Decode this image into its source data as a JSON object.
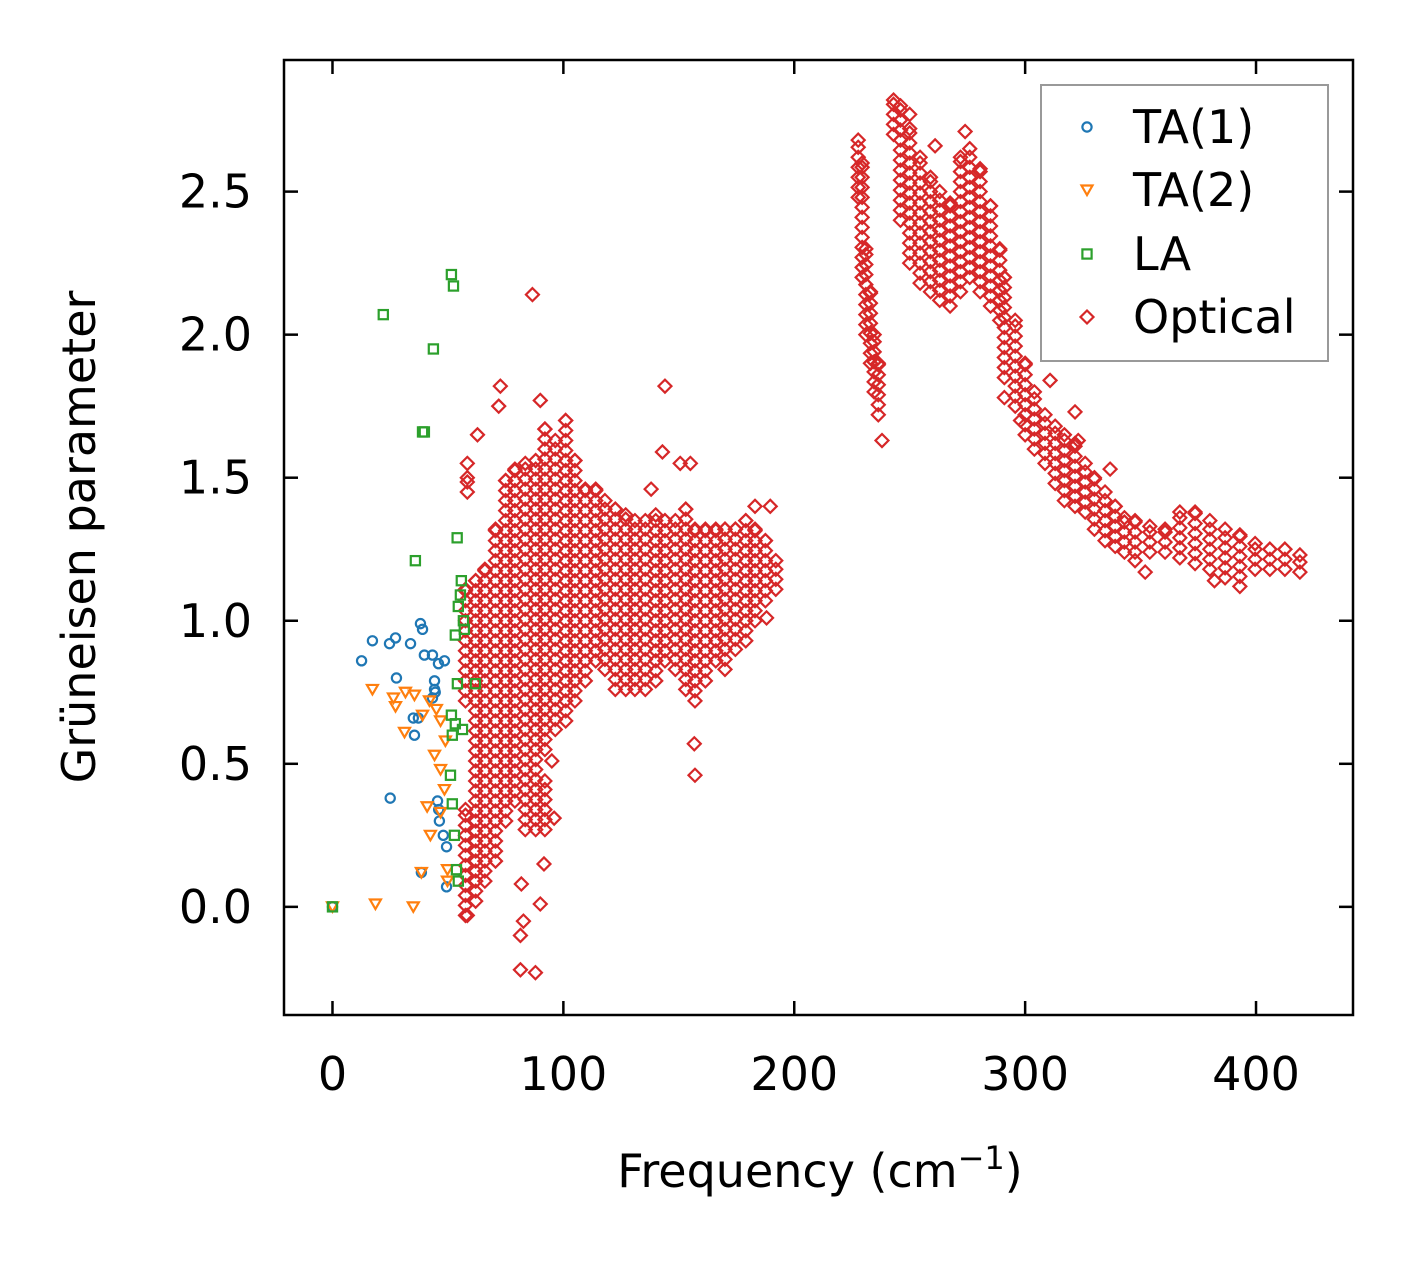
{
  "chart_data": {
    "type": "scatter",
    "title": "",
    "xlabel": {
      "main": "Frequency (cm",
      "sup": "−1",
      "end": ")"
    },
    "ylabel": "Grüneisen parameter",
    "xlim": [
      -21,
      442
    ],
    "ylim": [
      -0.378,
      2.96
    ],
    "xticks": [
      0,
      100,
      200,
      300,
      400
    ],
    "xtick_labels": [
      "0",
      "100",
      "200",
      "300",
      "400"
    ],
    "yticks": [
      0.0,
      0.5,
      1.0,
      1.5,
      2.0,
      2.5
    ],
    "ytick_labels": [
      "0.0",
      "0.5",
      "1.0",
      "1.5",
      "2.0",
      "2.5"
    ],
    "grid": false,
    "legend_position": "top-right",
    "series": [
      {
        "name": "TA(1)",
        "marker": "circle",
        "color": "#1f77b4",
        "points": [
          [
            0,
            0
          ],
          [
            12.6,
            0.86
          ],
          [
            17.3,
            0.93
          ],
          [
            24.7,
            0.92
          ],
          [
            27.3,
            0.94
          ],
          [
            33.8,
            0.92
          ],
          [
            38.1,
            0.99
          ],
          [
            39,
            0.97
          ],
          [
            39.8,
            0.88
          ],
          [
            43.3,
            0.88
          ],
          [
            27.7,
            0.8
          ],
          [
            44.2,
            0.79
          ],
          [
            44.2,
            0.76
          ],
          [
            43.3,
            0.73
          ],
          [
            44.5,
            0.75
          ],
          [
            35,
            0.66
          ],
          [
            37.2,
            0.66
          ],
          [
            35.5,
            0.6
          ],
          [
            45.9,
            0.85
          ],
          [
            48.5,
            0.86
          ],
          [
            25,
            0.38
          ],
          [
            38.5,
            0.12
          ],
          [
            45.5,
            0.37
          ],
          [
            46,
            0.34
          ],
          [
            46.3,
            0.3
          ],
          [
            49.4,
            0.21
          ],
          [
            49.4,
            0.07
          ],
          [
            48,
            0.25
          ]
        ]
      },
      {
        "name": "TA(2)",
        "marker": "triangle-down",
        "color": "#ff7f0e",
        "points": [
          [
            0,
            0
          ],
          [
            18.6,
            0.01
          ],
          [
            35,
            0
          ],
          [
            17.3,
            0.76
          ],
          [
            26.4,
            0.73
          ],
          [
            31.6,
            0.75
          ],
          [
            35.5,
            0.74
          ],
          [
            27.3,
            0.7
          ],
          [
            31.2,
            0.61
          ],
          [
            39,
            0.67
          ],
          [
            44.2,
            0.53
          ],
          [
            46.8,
            0.65
          ],
          [
            41,
            0.35
          ],
          [
            42.4,
            0.25
          ],
          [
            46.8,
            0.33
          ],
          [
            48.5,
            0.41
          ],
          [
            38.5,
            0.12
          ],
          [
            49.8,
            0.13
          ],
          [
            49.8,
            0.09
          ],
          [
            48.9,
            0.58
          ],
          [
            46.8,
            0.48
          ],
          [
            42,
            0.72
          ],
          [
            45,
            0.69
          ]
        ]
      },
      {
        "name": "LA",
        "marker": "square",
        "color": "#2ca02c",
        "points": [
          [
            0,
            0
          ],
          [
            22,
            2.07
          ],
          [
            51.5,
            2.21
          ],
          [
            52.4,
            2.17
          ],
          [
            43.7,
            1.95
          ],
          [
            39,
            1.66
          ],
          [
            39.8,
            1.66
          ],
          [
            35.9,
            1.21
          ],
          [
            54,
            1.29
          ],
          [
            55.8,
            1.14
          ],
          [
            55.4,
            1.09
          ],
          [
            54.5,
            1.05
          ],
          [
            56.7,
            1.0
          ],
          [
            57.1,
            0.97
          ],
          [
            53.2,
            0.95
          ],
          [
            54.1,
            0.78
          ],
          [
            61.9,
            0.78
          ],
          [
            51.5,
            0.67
          ],
          [
            53.2,
            0.64
          ],
          [
            51.9,
            0.6
          ],
          [
            56.3,
            0.62
          ],
          [
            51.1,
            0.46
          ],
          [
            51.9,
            0.36
          ],
          [
            52.8,
            0.25
          ],
          [
            53.7,
            0.13
          ],
          [
            54.5,
            0.09
          ]
        ]
      },
      {
        "name": "Optical",
        "marker": "diamond",
        "color": "#d62728",
        "dense_columns": [
          [
            57.6,
            0.72,
            1.11
          ],
          [
            57.6,
            -0.03,
            0.34
          ],
          [
            58.4,
            1.45,
            1.5
          ],
          [
            62,
            0.02,
            1.14
          ],
          [
            66,
            0.09,
            1.18
          ],
          [
            70.6,
            0.16,
            1.32
          ],
          [
            75,
            0.3,
            1.49
          ],
          [
            79,
            0.37,
            1.53
          ],
          [
            83.5,
            0.27,
            1.55
          ],
          [
            88,
            0.27,
            1.56
          ],
          [
            92,
            0.55,
            1.67
          ],
          [
            92,
            0.27,
            0.44
          ],
          [
            96.5,
            0.62,
            1.63
          ],
          [
            101,
            0.65,
            1.7
          ],
          [
            105,
            0.72,
            1.56
          ],
          [
            109.5,
            0.79,
            1.46
          ],
          [
            114,
            0.86,
            1.46
          ],
          [
            118,
            0.83,
            1.42
          ],
          [
            122.5,
            0.76,
            1.39
          ],
          [
            127,
            0.76,
            1.37
          ],
          [
            131,
            0.76,
            1.35
          ],
          [
            135.5,
            0.76,
            1.35
          ],
          [
            140,
            0.79,
            1.37
          ],
          [
            144,
            0.86,
            1.35
          ],
          [
            148.5,
            0.83,
            1.35
          ],
          [
            153,
            0.76,
            1.39
          ],
          [
            157,
            0.72,
            1.32
          ],
          [
            161.5,
            0.79,
            1.32
          ],
          [
            166,
            0.86,
            1.32
          ],
          [
            170,
            0.83,
            1.32
          ],
          [
            174.5,
            0.9,
            1.32
          ],
          [
            179,
            0.93,
            1.35
          ],
          [
            183,
            1.0,
            1.32
          ],
          [
            187.5,
            1.07,
            1.28
          ],
          [
            192,
            1.11,
            1.21
          ],
          [
            227.7,
            2.48,
            2.68
          ],
          [
            229.4,
            2.2,
            2.6
          ],
          [
            231,
            2.0,
            2.3
          ],
          [
            233,
            1.9,
            2.15
          ],
          [
            234.6,
            1.8,
            2.0
          ],
          [
            236.4,
            1.72,
            1.9
          ],
          [
            243,
            2.7,
            2.82
          ],
          [
            246,
            2.4,
            2.8
          ],
          [
            250,
            2.25,
            2.72
          ],
          [
            254.5,
            2.18,
            2.62
          ],
          [
            259,
            2.15,
            2.55
          ],
          [
            263,
            2.12,
            2.5
          ],
          [
            267.5,
            2.1,
            2.46
          ],
          [
            272,
            2.15,
            2.62
          ],
          [
            276,
            2.2,
            2.65
          ],
          [
            280.5,
            2.15,
            2.58
          ],
          [
            285,
            2.1,
            2.45
          ],
          [
            289,
            2.05,
            2.3
          ],
          [
            291,
            1.85,
            2.2
          ],
          [
            295.7,
            1.75,
            2.05
          ],
          [
            300,
            1.65,
            1.9
          ],
          [
            304,
            1.6,
            1.8
          ],
          [
            308.6,
            1.55,
            1.72
          ],
          [
            313,
            1.48,
            1.68
          ],
          [
            317,
            1.42,
            1.65
          ],
          [
            321.6,
            1.4,
            1.62
          ],
          [
            326,
            1.38,
            1.55
          ],
          [
            330,
            1.32,
            1.5
          ],
          [
            334.6,
            1.28,
            1.45
          ],
          [
            339,
            1.26,
            1.4
          ],
          [
            343,
            1.24,
            1.36
          ],
          [
            347.6,
            1.24,
            1.35
          ],
          [
            354,
            1.24,
            1.33
          ],
          [
            360.6,
            1.24,
            1.32
          ],
          [
            367,
            1.22,
            1.38
          ],
          [
            373.6,
            1.2,
            1.38
          ],
          [
            380,
            1.18,
            1.35
          ],
          [
            386.6,
            1.15,
            1.32
          ],
          [
            393,
            1.12,
            1.3
          ],
          [
            399.6,
            1.18,
            1.27
          ],
          [
            406,
            1.18,
            1.25
          ],
          [
            412.5,
            1.18,
            1.25
          ],
          [
            419,
            1.17,
            1.23
          ]
        ],
        "points": [
          [
            86.6,
            2.14
          ],
          [
            144,
            1.82
          ],
          [
            72.7,
            1.82
          ],
          [
            72,
            1.75
          ],
          [
            90,
            1.77
          ],
          [
            62.8,
            1.65
          ],
          [
            58.4,
            1.55
          ],
          [
            142.9,
            1.59
          ],
          [
            150.6,
            1.55
          ],
          [
            155,
            1.55
          ],
          [
            138,
            1.46
          ],
          [
            183,
            1.4
          ],
          [
            156.7,
            0.57
          ],
          [
            157,
            0.46
          ],
          [
            95,
            0.51
          ],
          [
            96,
            0.31
          ],
          [
            91.6,
            0.15
          ],
          [
            90,
            0.01
          ],
          [
            81.8,
            0.08
          ],
          [
            82.7,
            -0.05
          ],
          [
            81.4,
            -0.1
          ],
          [
            81.4,
            -0.22
          ],
          [
            87.9,
            -0.23
          ],
          [
            58.4,
            -0.03
          ],
          [
            62,
            0.09
          ],
          [
            274,
            2.71
          ],
          [
            238,
            1.63
          ],
          [
            321.6,
            1.73
          ],
          [
            323,
            1.63
          ],
          [
            352,
            1.17
          ],
          [
            382,
            1.14
          ],
          [
            347.6,
            1.21
          ],
          [
            188,
            1.01
          ],
          [
            298,
            1.7
          ],
          [
            291,
            1.78
          ],
          [
            310.8,
            1.84
          ],
          [
            336.8,
            1.53
          ],
          [
            189.6,
            1.4
          ],
          [
            261,
            2.66
          ],
          [
            250,
            2.77
          ]
        ]
      }
    ]
  }
}
